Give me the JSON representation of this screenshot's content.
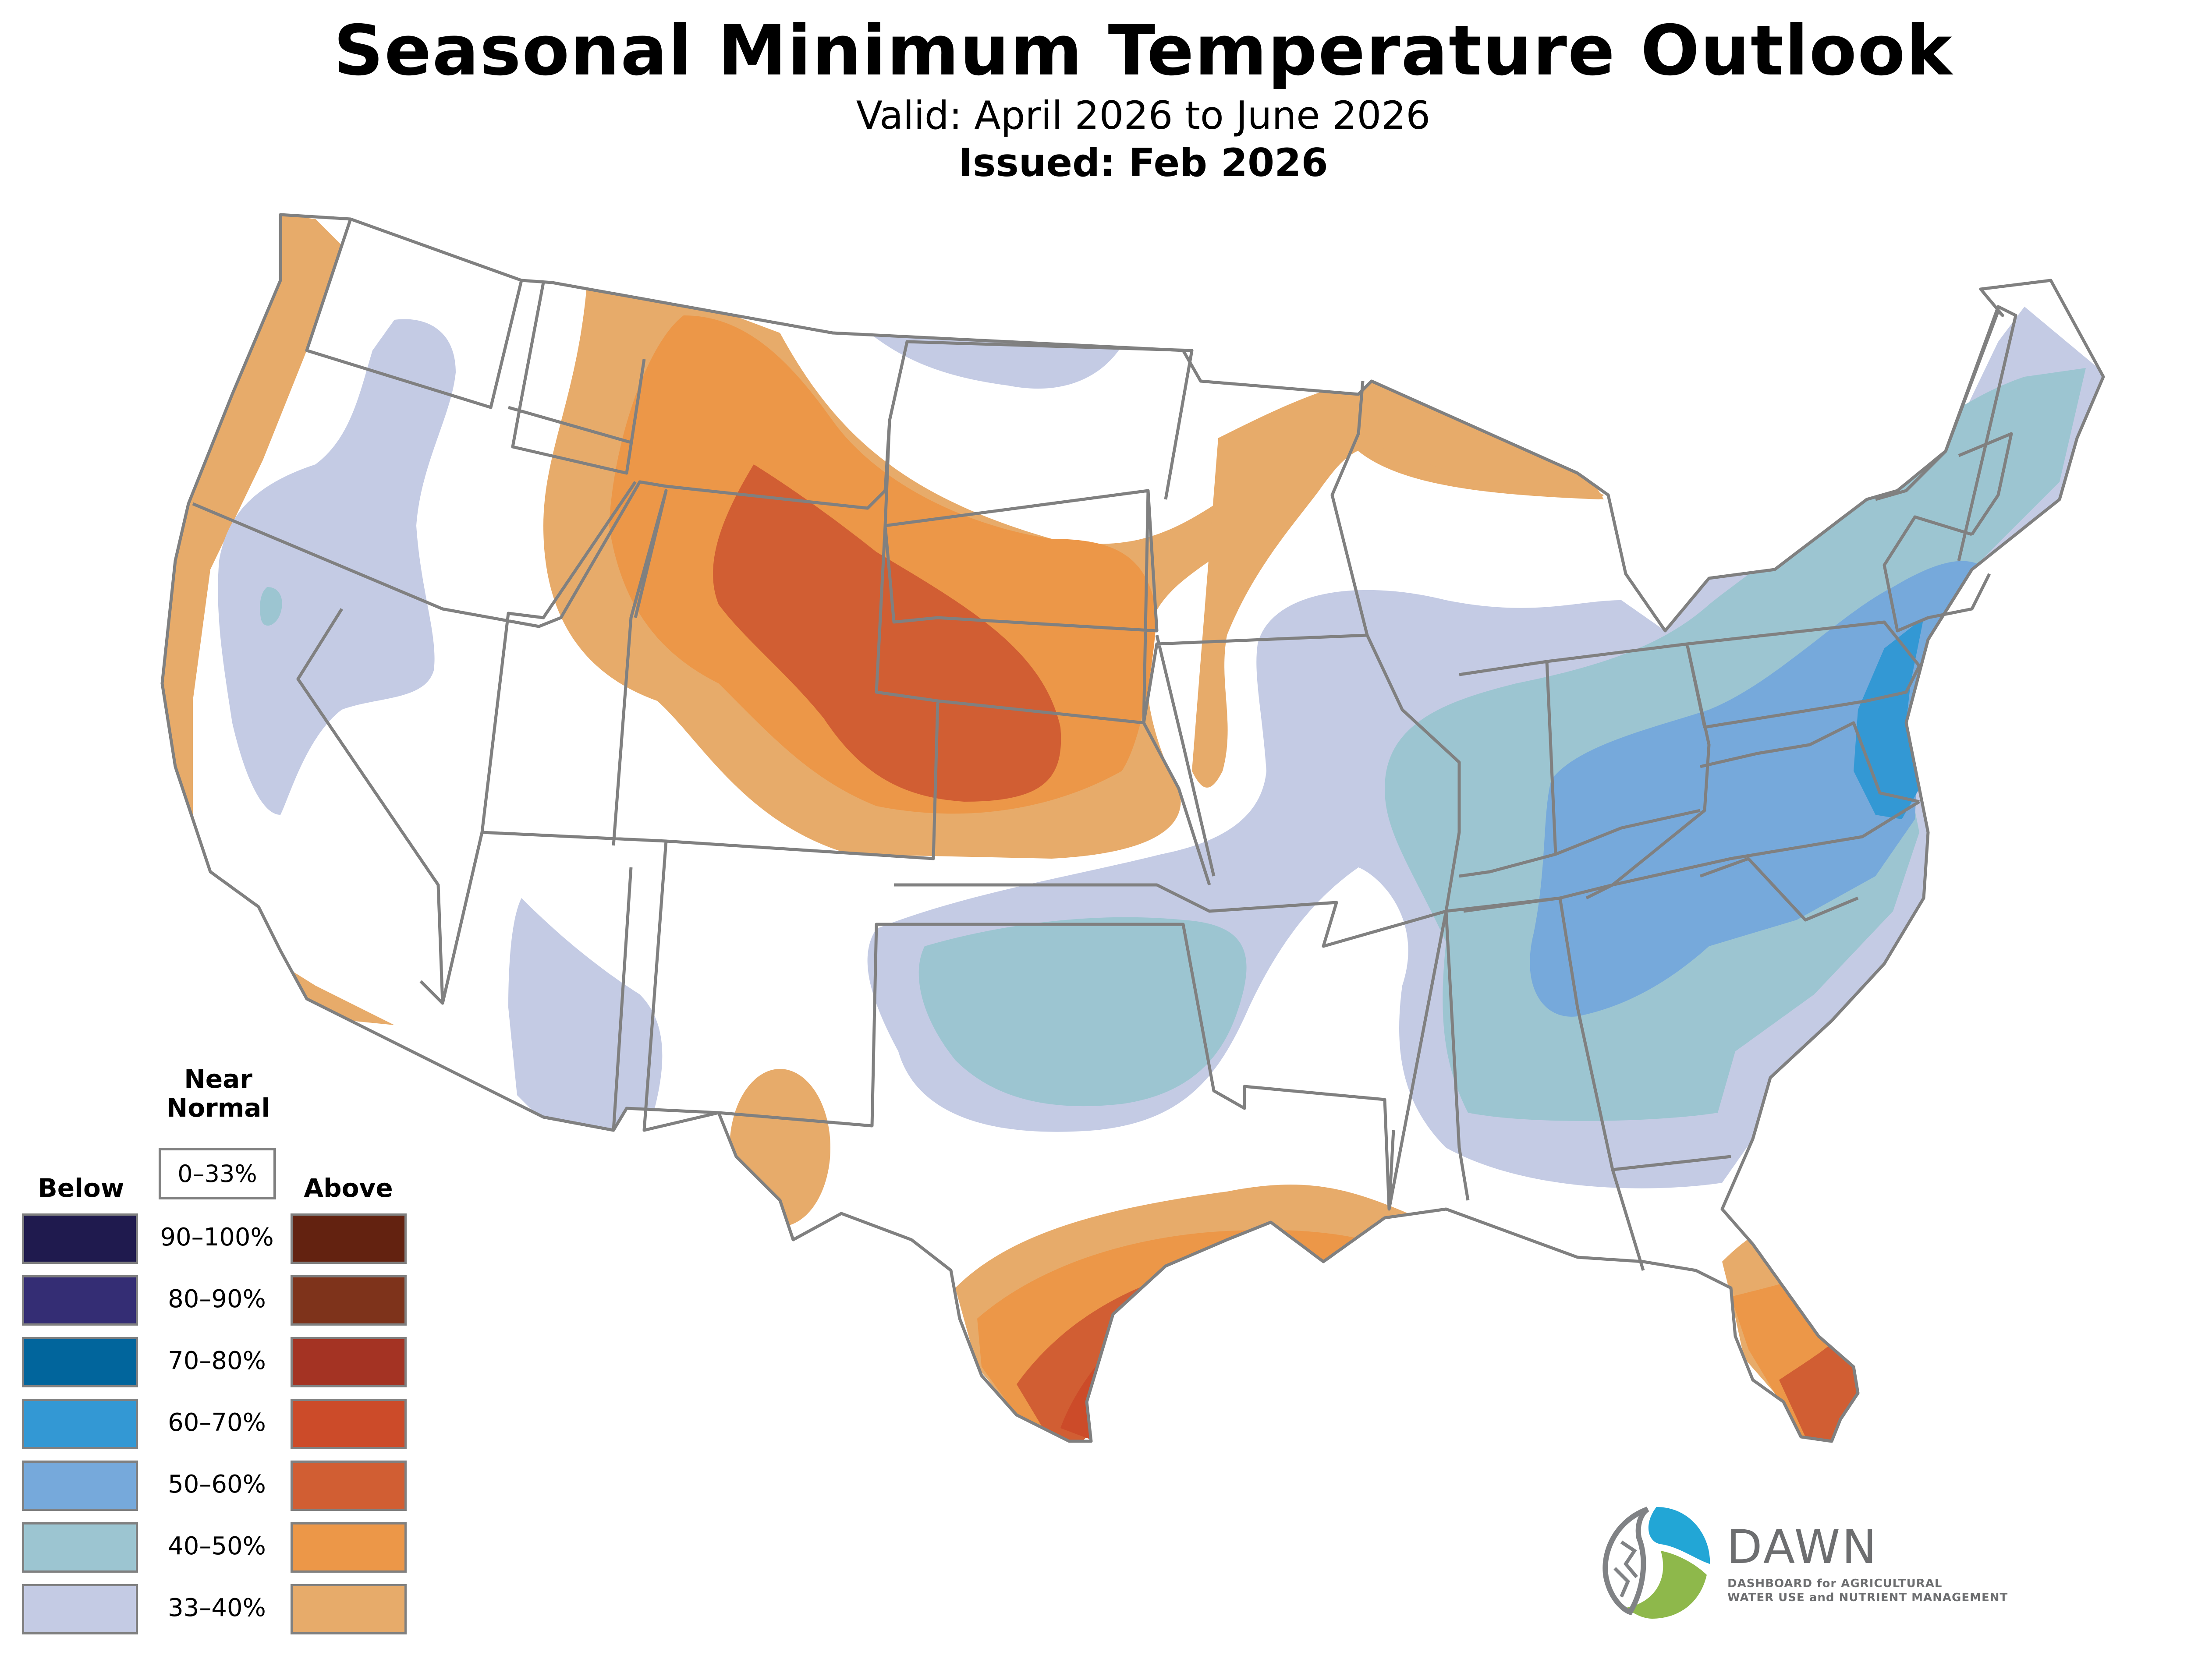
{
  "header": {
    "title": "Seasonal Minimum Temperature Outlook",
    "valid": "Valid: April 2026 to June 2026",
    "issued": "Issued: Feb 2026"
  },
  "legend": {
    "near_normal_title_line1": "Near",
    "near_normal_title_line2": "Normal",
    "near_normal_range": "0–33%",
    "below_title": "Below",
    "above_title": "Above",
    "rows": [
      {
        "range": "90–100%",
        "below_color": "#1f1a4e",
        "above_color": "#632210"
      },
      {
        "range": "80–90%",
        "below_color": "#342d74",
        "above_color": "#7e331b"
      },
      {
        "range": "70–80%",
        "below_color": "#01659c",
        "above_color": "#a43323"
      },
      {
        "range": "60–70%",
        "below_color": "#3398d4",
        "above_color": "#cc4b29"
      },
      {
        "range": "50–60%",
        "below_color": "#76a9db",
        "above_color": "#d15e33"
      },
      {
        "range": "40–50%",
        "below_color": "#9cc5d1",
        "above_color": "#ec9748"
      },
      {
        "range": "33–40%",
        "below_color": "#c4cbe4",
        "above_color": "#e7ab6a"
      }
    ]
  },
  "map": {
    "border_color": "#808080",
    "regions": [
      {
        "name": "northern-plains-rockies",
        "category": "above",
        "levels": [
          "33–40%",
          "40–50%",
          "50–60%"
        ]
      },
      {
        "name": "upper-midwest-great-lakes",
        "category": "above",
        "levels": [
          "33–40%"
        ]
      },
      {
        "name": "pacific-coast",
        "category": "above",
        "levels": [
          "33–40%"
        ]
      },
      {
        "name": "gulf-coast-texas",
        "category": "above",
        "levels": [
          "33–40%",
          "40–50%",
          "50–60%",
          "60–70%"
        ]
      },
      {
        "name": "florida",
        "category": "above",
        "levels": [
          "33–40%",
          "40–50%",
          "50–60%"
        ]
      },
      {
        "name": "west-texas",
        "category": "above",
        "levels": [
          "33–40%"
        ]
      },
      {
        "name": "east-mid-atlantic",
        "category": "below",
        "levels": [
          "33–40%",
          "40–50%",
          "50–60%",
          "60–70%"
        ]
      },
      {
        "name": "southern-plains",
        "category": "below",
        "levels": [
          "33–40%",
          "40–50%"
        ]
      },
      {
        "name": "great-basin",
        "category": "below",
        "levels": [
          "33–40%",
          "40–50%"
        ]
      },
      {
        "name": "arizona",
        "category": "below",
        "levels": [
          "33–40%"
        ]
      },
      {
        "name": "north-dakota",
        "category": "below",
        "levels": [
          "33–40%"
        ]
      }
    ]
  },
  "logo": {
    "word": "DAWN",
    "line1": "DASHBOARD for AGRICULTURAL",
    "line2": "WATER USE and NUTRIENT MANAGEMENT"
  }
}
